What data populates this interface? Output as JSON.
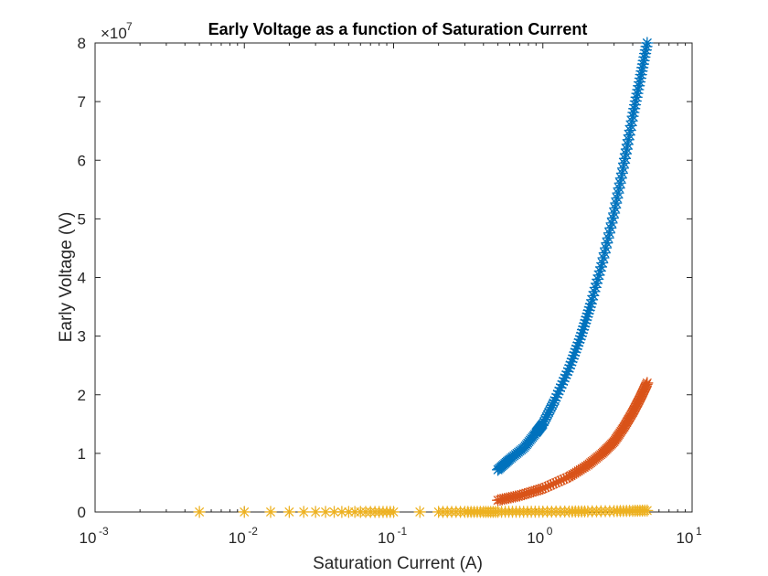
{
  "chart_data": {
    "type": "scatter",
    "title": "Early Voltage as a function of Saturation Current",
    "xlabel": "Saturation Current (A)",
    "ylabel": "Early Voltage (V)",
    "xscale": "log",
    "xlim": [
      0.001,
      10
    ],
    "ylim": [
      0,
      8
    ],
    "y_multiplier": "×10",
    "y_multiplier_exponent": "7",
    "x_ticks": [
      {
        "value": 0.001,
        "base": "10",
        "exp": "-3"
      },
      {
        "value": 0.01,
        "base": "10",
        "exp": "-2"
      },
      {
        "value": 0.1,
        "base": "10",
        "exp": "-1"
      },
      {
        "value": 1,
        "base": "10",
        "exp": "0"
      },
      {
        "value": 10,
        "base": "10",
        "exp": "1"
      }
    ],
    "y_ticks": [
      "0",
      "1",
      "2",
      "3",
      "4",
      "5",
      "6",
      "7",
      "8"
    ],
    "grid": false,
    "marker": "asterisk",
    "series": [
      {
        "color": "#0072BD",
        "x": [
          0.5,
          0.6,
          0.75,
          0.9,
          1.0,
          1.2,
          1.5,
          1.8,
          2.1,
          2.5,
          3.0,
          3.5,
          4.0,
          4.5,
          5.0
        ],
        "y": [
          0.72,
          0.9,
          1.1,
          1.35,
          1.5,
          1.9,
          2.45,
          3.0,
          3.55,
          4.25,
          5.1,
          5.95,
          6.75,
          7.4,
          8.0
        ]
      },
      {
        "color": "#D95319",
        "x": [
          0.5,
          0.7,
          1.0,
          1.5,
          2.0,
          2.5,
          3.0,
          3.5,
          4.0,
          4.5,
          5.0
        ],
        "y": [
          0.2,
          0.28,
          0.4,
          0.6,
          0.8,
          1.0,
          1.2,
          1.45,
          1.7,
          1.95,
          2.2
        ]
      },
      {
        "color": "#EDB120",
        "x": [
          0.005,
          0.01,
          0.015,
          0.02,
          0.025,
          0.03,
          0.035,
          0.04,
          0.045,
          0.05,
          0.055,
          0.06,
          0.065,
          0.07,
          0.075,
          0.08,
          0.085,
          0.09,
          0.095,
          0.1,
          0.15,
          0.2,
          0.3,
          0.4,
          0.5,
          0.7,
          1.0,
          1.5,
          2.0,
          3.0,
          4.0,
          5.0
        ],
        "y": [
          0.001,
          0.001,
          0.001,
          0.001,
          0.001,
          0.001,
          0.001,
          0.001,
          0.001,
          0.001,
          0.001,
          0.001,
          0.001,
          0.001,
          0.001,
          0.001,
          0.001,
          0.001,
          0.001,
          0.001,
          0.001,
          0.001,
          0.002,
          0.002,
          0.003,
          0.004,
          0.005,
          0.008,
          0.01,
          0.015,
          0.02,
          0.025
        ]
      }
    ]
  }
}
